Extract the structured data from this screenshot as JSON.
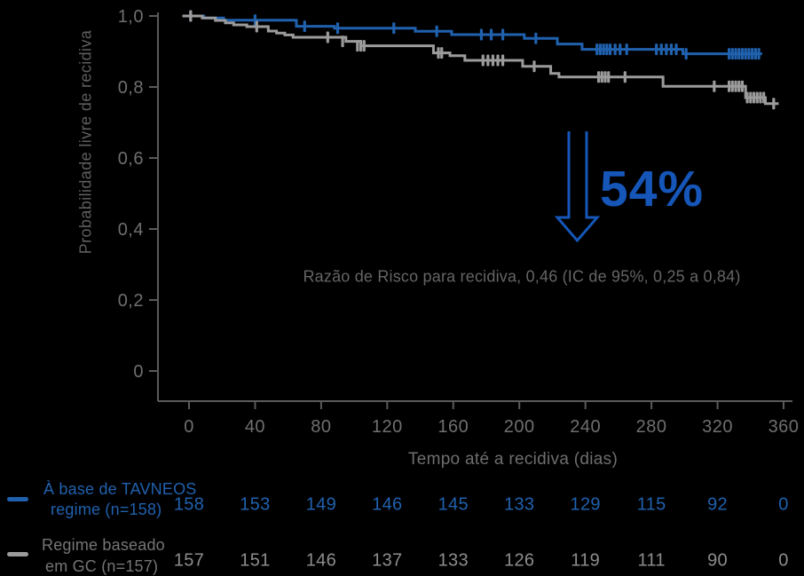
{
  "colors": {
    "background": "#000000",
    "tavneos_blue": "#2061ae",
    "accent_blue": "#1556b8",
    "gc_gray": "#9b9b9b",
    "axis_line": "#5a5a5a",
    "axis_text": "#6f6f6f",
    "hr_text": "#656565",
    "at_risk_gray": "#8d8d8d"
  },
  "chart_data": {
    "type": "line",
    "variant": "kaplan_meier_step",
    "title": "",
    "xlabel": "Tempo até a recidiva (dias)",
    "ylabel": "Probabilidade livre de recidiva",
    "xlim": [
      0,
      360
    ],
    "ylim": [
      0,
      1.0
    ],
    "grid": false,
    "x_ticks": [
      0,
      40,
      80,
      120,
      160,
      200,
      240,
      280,
      320,
      360
    ],
    "x_tick_labels": [
      "0",
      "40",
      "80",
      "120",
      "160",
      "200",
      "240",
      "280",
      "320",
      "360"
    ],
    "y_ticks": [
      1.0,
      0.8,
      0.6,
      0.4,
      0.2,
      0
    ],
    "y_tick_labels": [
      "1,0",
      "0,8",
      "0,6",
      "0,4",
      "0,2",
      "0"
    ],
    "annotation": {
      "percent_label": "54%",
      "arrow": "down",
      "hr_text": "Razão de Risco para recidiva, 0,46 (IC de 95%, 0,25 a 0,84)"
    },
    "series": [
      {
        "name": "À base de TAVNEOS regime (n=158)",
        "color": "#2061ae",
        "start_day": -4,
        "end_day": 347,
        "steps": [
          [
            0,
            1.0
          ],
          [
            9,
            0.9945
          ],
          [
            21,
            0.988
          ],
          [
            65,
            0.971
          ],
          [
            88,
            0.9655
          ],
          [
            137,
            0.957
          ],
          [
            159,
            0.9475
          ],
          [
            203,
            0.937
          ],
          [
            223,
            0.921
          ],
          [
            238,
            0.906
          ],
          [
            299,
            0.8935
          ]
        ],
        "censors": [
          [
            1,
            1.0
          ],
          [
            40,
            0.988
          ],
          [
            70,
            0.971
          ],
          [
            90,
            0.9655
          ],
          [
            124,
            0.9655
          ],
          [
            150,
            0.957
          ],
          [
            177,
            0.9475
          ],
          [
            183,
            0.9475
          ],
          [
            190,
            0.9475
          ],
          [
            210,
            0.937
          ],
          [
            247,
            0.906
          ],
          [
            249,
            0.906
          ],
          [
            251,
            0.906
          ],
          [
            253,
            0.906
          ],
          [
            255,
            0.906
          ],
          [
            258,
            0.906
          ],
          [
            261,
            0.906
          ],
          [
            265,
            0.906
          ],
          [
            283,
            0.906
          ],
          [
            286,
            0.906
          ],
          [
            289,
            0.906
          ],
          [
            292,
            0.906
          ],
          [
            295,
            0.906
          ],
          [
            301,
            0.8935
          ],
          [
            327,
            0.8935
          ],
          [
            329,
            0.8935
          ],
          [
            331,
            0.8935
          ],
          [
            333,
            0.8935
          ],
          [
            335,
            0.8935
          ],
          [
            337,
            0.8935
          ],
          [
            339,
            0.8935
          ],
          [
            341,
            0.8935
          ],
          [
            343,
            0.8935
          ],
          [
            345,
            0.8935
          ]
        ]
      },
      {
        "name": "Regime baseado em GC (n=157)",
        "color": "#9b9b9b",
        "start_day": -4,
        "end_day": 357,
        "steps": [
          [
            0,
            1.0
          ],
          [
            8,
            0.9945
          ],
          [
            16,
            0.9875
          ],
          [
            22,
            0.9805
          ],
          [
            27,
            0.975
          ],
          [
            35,
            0.97
          ],
          [
            48,
            0.9575
          ],
          [
            53,
            0.952
          ],
          [
            58,
            0.9465
          ],
          [
            63,
            0.94
          ],
          [
            95,
            0.9285
          ],
          [
            104,
            0.916
          ],
          [
            148,
            0.896
          ],
          [
            158,
            0.888
          ],
          [
            167,
            0.875
          ],
          [
            202,
            0.858
          ],
          [
            219,
            0.838
          ],
          [
            224,
            0.828
          ],
          [
            287,
            0.802
          ],
          [
            337,
            0.77
          ],
          [
            349,
            0.753
          ]
        ],
        "censors": [
          [
            1,
            1.0
          ],
          [
            41,
            0.97
          ],
          [
            84,
            0.94
          ],
          [
            93,
            0.9285
          ],
          [
            102,
            0.916
          ],
          [
            104,
            0.916
          ],
          [
            106,
            0.916
          ],
          [
            151,
            0.896
          ],
          [
            153,
            0.896
          ],
          [
            178,
            0.875
          ],
          [
            181,
            0.875
          ],
          [
            184,
            0.875
          ],
          [
            187,
            0.875
          ],
          [
            190,
            0.875
          ],
          [
            209,
            0.858
          ],
          [
            248,
            0.828
          ],
          [
            250,
            0.828
          ],
          [
            252,
            0.828
          ],
          [
            254,
            0.828
          ],
          [
            264,
            0.828
          ],
          [
            318,
            0.802
          ],
          [
            327,
            0.802
          ],
          [
            329,
            0.802
          ],
          [
            331,
            0.802
          ],
          [
            333,
            0.802
          ],
          [
            335,
            0.802
          ],
          [
            338,
            0.77
          ],
          [
            340,
            0.77
          ],
          [
            342,
            0.77
          ],
          [
            344,
            0.77
          ],
          [
            346,
            0.77
          ],
          [
            348,
            0.77
          ],
          [
            354,
            0.753
          ]
        ]
      }
    ],
    "at_risk": {
      "time_points": [
        0,
        40,
        80,
        120,
        160,
        200,
        240,
        280,
        320,
        360
      ],
      "groups": [
        {
          "name_lines": [
            "À base de TAVNEOS",
            "regime (n=158)"
          ],
          "color": "#2061ae",
          "counts": [
            "158",
            "153",
            "149",
            "146",
            "145",
            "133",
            "129",
            "115",
            "92",
            "0"
          ]
        },
        {
          "name_lines": [
            "Regime baseado",
            "em GC (n=157)"
          ],
          "color": "#8d8d8d",
          "counts": [
            "157",
            "151",
            "146",
            "137",
            "133",
            "126",
            "119",
            "111",
            "90",
            "0"
          ]
        }
      ]
    }
  }
}
